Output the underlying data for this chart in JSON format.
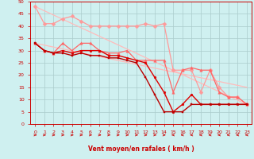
{
  "xlabel": "Vent moyen/en rafales ( km/h )",
  "background_color": "#cff0f0",
  "grid_color": "#aacccc",
  "xlim": [
    -0.5,
    23.5
  ],
  "ylim": [
    0,
    50
  ],
  "yticks": [
    0,
    5,
    10,
    15,
    20,
    25,
    30,
    35,
    40,
    45,
    50
  ],
  "xticks": [
    0,
    1,
    2,
    3,
    4,
    5,
    6,
    7,
    8,
    9,
    10,
    11,
    12,
    13,
    14,
    15,
    16,
    17,
    18,
    19,
    20,
    21,
    22,
    23
  ],
  "lines": [
    {
      "x": [
        0,
        23
      ],
      "y": [
        48,
        8
      ],
      "color": "#ffbbbb",
      "marker": null,
      "markersize": 0,
      "linewidth": 0.9,
      "zorder": 1
    },
    {
      "x": [
        0,
        23
      ],
      "y": [
        33,
        15
      ],
      "color": "#ffbbbb",
      "marker": null,
      "markersize": 0,
      "linewidth": 0.9,
      "zorder": 1
    },
    {
      "x": [
        0,
        1,
        2,
        3,
        4,
        5,
        6,
        7,
        8,
        9,
        10,
        11,
        12,
        13,
        14,
        15,
        16,
        17,
        18,
        19,
        20,
        21,
        22,
        23
      ],
      "y": [
        48,
        41,
        41,
        43,
        44,
        42,
        40,
        40,
        40,
        40,
        40,
        40,
        41,
        40,
        41,
        22,
        22,
        22,
        13,
        22,
        15,
        11,
        11,
        8
      ],
      "color": "#ff9999",
      "marker": "D",
      "markersize": 2.5,
      "linewidth": 0.9,
      "zorder": 2
    },
    {
      "x": [
        0,
        1,
        2,
        3,
        4,
        5,
        6,
        7,
        8,
        9,
        10,
        11,
        12,
        13,
        14,
        15,
        16,
        17,
        18,
        19,
        20,
        21,
        22,
        23
      ],
      "y": [
        33,
        30,
        29,
        33,
        30,
        33,
        33,
        30,
        29,
        29,
        30,
        26,
        26,
        26,
        26,
        13,
        22,
        23,
        22,
        22,
        13,
        11,
        11,
        8
      ],
      "color": "#ff6666",
      "marker": "^",
      "markersize": 2.5,
      "linewidth": 0.9,
      "zorder": 3
    },
    {
      "x": [
        0,
        1,
        2,
        3,
        4,
        5,
        6,
        7,
        8,
        9,
        10,
        11,
        12,
        13,
        14,
        15,
        16,
        17,
        18,
        19,
        20,
        21,
        22,
        23
      ],
      "y": [
        33,
        30,
        29,
        30,
        29,
        30,
        30,
        30,
        28,
        28,
        27,
        26,
        25,
        19,
        13,
        5,
        8,
        12,
        8,
        8,
        8,
        8,
        8,
        8
      ],
      "color": "#dd0000",
      "marker": "o",
      "markersize": 2.0,
      "linewidth": 1.0,
      "zorder": 4
    },
    {
      "x": [
        0,
        1,
        2,
        3,
        4,
        5,
        6,
        7,
        8,
        9,
        10,
        11,
        12,
        13,
        14,
        15,
        16,
        17,
        18,
        19,
        20,
        21,
        22,
        23
      ],
      "y": [
        33,
        30,
        29,
        29,
        28,
        29,
        28,
        28,
        27,
        27,
        26,
        25,
        19,
        12,
        5,
        5,
        5,
        8,
        8,
        8,
        8,
        8,
        8,
        8
      ],
      "color": "#bb0000",
      "marker": "s",
      "markersize": 2.0,
      "linewidth": 1.0,
      "zorder": 5
    }
  ],
  "arrow_directions": [
    1,
    1,
    1,
    1,
    1,
    1,
    1,
    1,
    1,
    1,
    1,
    1,
    1,
    1,
    1,
    -1,
    -1,
    -1,
    -1,
    -1,
    -1,
    -1,
    -1,
    -1
  ]
}
